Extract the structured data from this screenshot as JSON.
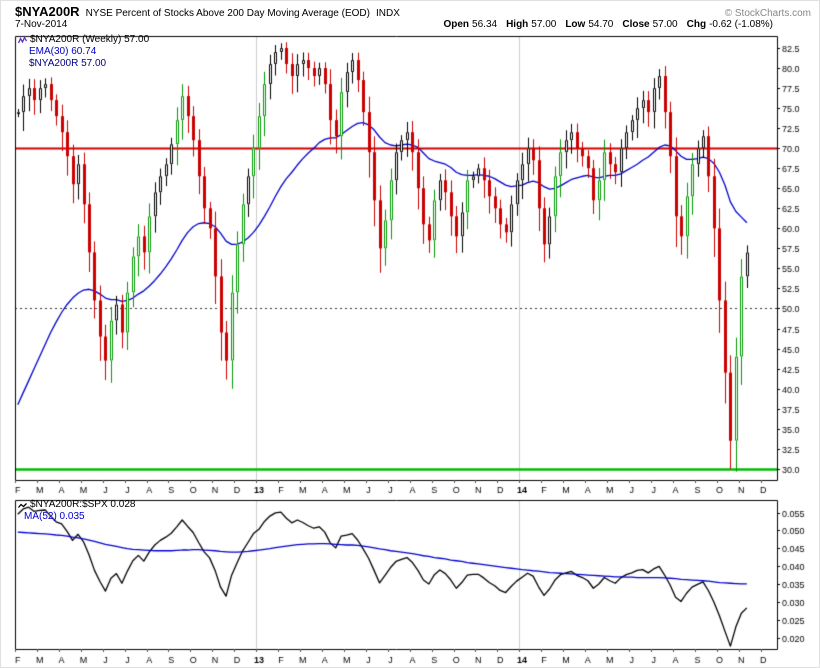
{
  "header": {
    "symbol": "$NYA200R",
    "title": "NYSE Percent of Stocks Above 200 Day Moving Average (EOD)",
    "exchange": "INDX",
    "copyright": "© StockCharts.com",
    "date": "7-Nov-2014",
    "quote": {
      "open_label": "Open",
      "open": "56.34",
      "high_label": "High",
      "high": "57.00",
      "low_label": "Low",
      "low": "54.70",
      "close_label": "Close",
      "close": "57.00",
      "chg_label": "Chg",
      "chg": "-0.62 (-1.08%)"
    }
  },
  "main_legend": {
    "series": "$NYA200R (Weekly) 57.00",
    "ema": "EMA(30) 60.74",
    "price": "$NYA200R 57.00"
  },
  "lower_legend": {
    "ratio": "$NYA200R:$SPX 0.028",
    "ma": "MA(52) 0.035"
  },
  "colors": {
    "candle_up": "#000000",
    "candle_up_strong": "#009900",
    "candle_down": "#cc0000",
    "ema_line": "#0000cc",
    "ratio_line": "#000000",
    "ma_line": "#0000cc",
    "overbought_line": "#cc0000",
    "oversold_line": "#00bb00",
    "mid_dashed_line": "#333333",
    "year_gridline": "#cccccc",
    "axis_text": "#000000"
  },
  "chart_data": {
    "type": [
      "candlestick",
      "line"
    ],
    "frequency": "Weekly",
    "x_range": "Feb-2012 to Nov-2014",
    "months": [
      {
        "label": "F",
        "weeks": 4
      },
      {
        "label": "M",
        "weeks": 4
      },
      {
        "label": "A",
        "weeks": 4
      },
      {
        "label": "M",
        "weeks": 4
      },
      {
        "label": "J",
        "weeks": 4
      },
      {
        "label": "J",
        "weeks": 4
      },
      {
        "label": "A",
        "weeks": 4
      },
      {
        "label": "S",
        "weeks": 4
      },
      {
        "label": "O",
        "weeks": 4
      },
      {
        "label": "N",
        "weeks": 4
      },
      {
        "label": "D",
        "weeks": 4
      },
      {
        "label": "13",
        "weeks": 4,
        "bold": true
      },
      {
        "label": "F",
        "weeks": 4
      },
      {
        "label": "M",
        "weeks": 4
      },
      {
        "label": "A",
        "weeks": 4
      },
      {
        "label": "M",
        "weeks": 4
      },
      {
        "label": "J",
        "weeks": 4
      },
      {
        "label": "J",
        "weeks": 4
      },
      {
        "label": "A",
        "weeks": 4
      },
      {
        "label": "S",
        "weeks": 4
      },
      {
        "label": "O",
        "weeks": 4
      },
      {
        "label": "N",
        "weeks": 4
      },
      {
        "label": "D",
        "weeks": 4
      },
      {
        "label": "14",
        "weeks": 4,
        "bold": true
      },
      {
        "label": "F",
        "weeks": 4
      },
      {
        "label": "M",
        "weeks": 4
      },
      {
        "label": "A",
        "weeks": 4
      },
      {
        "label": "M",
        "weeks": 4
      },
      {
        "label": "J",
        "weeks": 4
      },
      {
        "label": "J",
        "weeks": 4
      },
      {
        "label": "A",
        "weeks": 4
      },
      {
        "label": "S",
        "weeks": 4
      },
      {
        "label": "O",
        "weeks": 4
      },
      {
        "label": "N",
        "weeks": 4
      },
      {
        "label": "D",
        "weeks": 3
      }
    ],
    "panels": [
      {
        "name": "$NYA200R (Weekly)",
        "type": "candlestick",
        "ylim": [
          28.6,
          84.0
        ],
        "decimals": 1,
        "yticks": [
          82.5,
          80.0,
          77.5,
          75.0,
          72.5,
          70.0,
          67.5,
          65.0,
          62.5,
          60.0,
          57.5,
          55.0,
          52.5,
          50.0,
          47.5,
          45.0,
          42.5,
          40.0,
          37.5,
          35.0,
          32.5,
          30.0
        ],
        "hlines": [
          {
            "y": 70.0,
            "color": "#cc0000",
            "width": 2
          },
          {
            "y": 50.0,
            "color": "#333333",
            "width": 1,
            "style": "dashed"
          },
          {
            "y": 30.0,
            "color": "#00bb00",
            "width": 2.5
          }
        ],
        "closes": [
          74.5,
          76.5,
          77.5,
          76.0,
          77.5,
          78.0,
          76.0,
          74.0,
          72.0,
          69.0,
          65.5,
          68.0,
          63.0,
          57.0,
          51.0,
          46.5,
          43.5,
          48.5,
          50.5,
          47.0,
          52.0,
          56.5,
          59.0,
          57.0,
          61.5,
          64.5,
          66.5,
          68.0,
          70.5,
          73.5,
          76.5,
          74.0,
          71.0,
          66.5,
          62.5,
          60.0,
          54.0,
          47.0,
          43.5,
          52.0,
          58.0,
          63.0,
          66.5,
          70.0,
          74.0,
          78.0,
          80.5,
          82.0,
          82.5,
          80.5,
          79.0,
          80.5,
          81.0,
          80.0,
          79.0,
          80.0,
          78.0,
          73.5,
          71.5,
          77.0,
          79.5,
          81.0,
          78.5,
          74.5,
          69.5,
          63.5,
          57.5,
          61.0,
          66.0,
          69.5,
          71.0,
          72.0,
          69.5,
          65.0,
          60.5,
          58.5,
          63.5,
          66.0,
          64.5,
          61.5,
          59.0,
          62.0,
          66.0,
          66.5,
          67.5,
          66.0,
          64.0,
          62.5,
          60.5,
          59.5,
          63.0,
          66.0,
          68.0,
          70.0,
          68.5,
          62.5,
          58.0,
          61.5,
          66.5,
          69.5,
          71.0,
          72.0,
          70.0,
          69.0,
          67.5,
          63.5,
          66.0,
          69.5,
          68.0,
          67.0,
          70.0,
          72.0,
          73.5,
          75.0,
          76.0,
          74.5,
          77.5,
          79.0,
          74.5,
          69.0,
          61.5,
          59.0,
          64.0,
          68.0,
          70.0,
          71.5,
          66.5,
          60.0,
          51.0,
          42.0,
          33.5,
          44.0,
          54.0,
          57.0
        ],
        "lines": [
          {
            "name": "EMA(30)",
            "color": "#0000cc",
            "width": 1.3,
            "values": [
              38.0,
              39.5,
              41.0,
              42.5,
              44.0,
              45.5,
              47.0,
              48.3,
              49.5,
              50.5,
              51.3,
              51.9,
              52.3,
              52.4,
              52.2,
              51.8,
              51.3,
              51.1,
              51.1,
              50.9,
              51.0,
              51.3,
              51.8,
              52.2,
              52.8,
              53.5,
              54.3,
              55.2,
              56.2,
              57.3,
              58.5,
              59.5,
              60.2,
              60.6,
              60.7,
              60.6,
              60.2,
              59.4,
              58.4,
              58.0,
              58.0,
              58.3,
              58.8,
              59.5,
              60.4,
              61.5,
              62.7,
              64.0,
              65.2,
              66.2,
              67.0,
              67.9,
              68.7,
              69.4,
              70.0,
              70.7,
              71.1,
              71.3,
              71.3,
              71.7,
              72.2,
              72.7,
              73.1,
              73.2,
              72.9,
              72.3,
              71.4,
              70.7,
              70.4,
              70.3,
              70.4,
              70.5,
              70.4,
              70.1,
              69.4,
              68.7,
              68.4,
              68.2,
              68.0,
              67.6,
              67.0,
              66.7,
              66.6,
              66.6,
              66.7,
              66.6,
              66.5,
              66.2,
              65.8,
              65.4,
              65.2,
              65.3,
              65.4,
              65.7,
              65.9,
              65.7,
              65.2,
              64.9,
              65.0,
              65.3,
              65.7,
              66.1,
              66.3,
              66.5,
              66.6,
              66.4,
              66.3,
              66.5,
              66.6,
              66.6,
              66.8,
              67.2,
              67.6,
              68.0,
              68.5,
              68.9,
              69.5,
              70.1,
              70.4,
              70.3,
              69.7,
              69.0,
              68.6,
              68.6,
              68.7,
              68.9,
              68.7,
              68.1,
              67.0,
              65.4,
              63.3,
              62.1,
              61.4,
              60.7
            ]
          }
        ]
      },
      {
        "name": "$NYA200R:$SPX",
        "type": "line",
        "ylim": [
          0.0168,
          0.0585
        ],
        "decimals": 3,
        "yticks": [
          0.055,
          0.05,
          0.045,
          0.04,
          0.035,
          0.03,
          0.025,
          0.02
        ],
        "hlines": [],
        "lines": [
          {
            "name": "$NYA200R:$SPX",
            "color": "#000000",
            "width": 1.3,
            "values": [
              0.0545,
              0.056,
              0.0565,
              0.0553,
              0.0556,
              0.0557,
              0.054,
              0.0524,
              0.0518,
              0.0497,
              0.0472,
              0.0489,
              0.0468,
              0.0432,
              0.0388,
              0.0357,
              0.033,
              0.0366,
              0.0379,
              0.0352,
              0.0386,
              0.0415,
              0.043,
              0.0414,
              0.044,
              0.0459,
              0.0472,
              0.0481,
              0.0492,
              0.051,
              0.0529,
              0.0511,
              0.0494,
              0.0466,
              0.044,
              0.0423,
              0.0388,
              0.0341,
              0.0316,
              0.0374,
              0.0409,
              0.0442,
              0.0466,
              0.0491,
              0.0503,
              0.0525,
              0.054,
              0.0549,
              0.0551,
              0.0534,
              0.0521,
              0.0529,
              0.0522,
              0.0513,
              0.0506,
              0.051,
              0.0495,
              0.0465,
              0.0451,
              0.0484,
              0.0487,
              0.0491,
              0.0473,
              0.0448,
              0.0422,
              0.0388,
              0.0353,
              0.0374,
              0.0396,
              0.0413,
              0.0419,
              0.0424,
              0.041,
              0.0388,
              0.0361,
              0.035,
              0.0376,
              0.0389,
              0.0379,
              0.0361,
              0.0338,
              0.0354,
              0.0375,
              0.0377,
              0.0377,
              0.0367,
              0.0354,
              0.0345,
              0.0332,
              0.0326,
              0.0343,
              0.0358,
              0.0369,
              0.038,
              0.0372,
              0.0342,
              0.0318,
              0.0336,
              0.0361,
              0.0376,
              0.0381,
              0.0385,
              0.0374,
              0.0368,
              0.0359,
              0.0338,
              0.035,
              0.0368,
              0.0359,
              0.0352,
              0.0367,
              0.0376,
              0.0381,
              0.0388,
              0.039,
              0.0381,
              0.0392,
              0.0399,
              0.0375,
              0.0347,
              0.0313,
              0.0301,
              0.0324,
              0.0341,
              0.0349,
              0.0356,
              0.0331,
              0.0299,
              0.0261,
              0.0218,
              0.0176,
              0.023,
              0.0268,
              0.0283
            ]
          },
          {
            "name": "MA(52)",
            "color": "#0000cc",
            "width": 1.3,
            "values": [
              0.0495,
              0.0494,
              0.0493,
              0.0492,
              0.0491,
              0.049,
              0.0489,
              0.0487,
              0.0486,
              0.0484,
              0.0481,
              0.0479,
              0.0476,
              0.0473,
              0.0469,
              0.0465,
              0.0461,
              0.0458,
              0.0455,
              0.0452,
              0.0449,
              0.0447,
              0.0446,
              0.0445,
              0.0444,
              0.0443,
              0.0443,
              0.0443,
              0.0443,
              0.0444,
              0.0445,
              0.0445,
              0.0446,
              0.0446,
              0.0445,
              0.0444,
              0.0443,
              0.0441,
              0.044,
              0.0439,
              0.0439,
              0.044,
              0.0441,
              0.0443,
              0.0445,
              0.0447,
              0.0449,
              0.0452,
              0.0454,
              0.0456,
              0.0458,
              0.046,
              0.0461,
              0.0462,
              0.0462,
              0.0463,
              0.0463,
              0.0462,
              0.0461,
              0.046,
              0.0459,
              0.0459,
              0.0458,
              0.0456,
              0.0454,
              0.0451,
              0.0448,
              0.0446,
              0.0443,
              0.0441,
              0.0439,
              0.0437,
              0.0435,
              0.0432,
              0.0429,
              0.0427,
              0.0424,
              0.0422,
              0.042,
              0.0417,
              0.0415,
              0.0413,
              0.041,
              0.0408,
              0.0406,
              0.0404,
              0.0402,
              0.04,
              0.0398,
              0.0396,
              0.0394,
              0.0392,
              0.039,
              0.0389,
              0.0387,
              0.0386,
              0.0384,
              0.0382,
              0.0381,
              0.038,
              0.0379,
              0.0378,
              0.0377,
              0.0376,
              0.0375,
              0.0374,
              0.0373,
              0.0372,
              0.0371,
              0.037,
              0.037,
              0.0369,
              0.0369,
              0.0368,
              0.0368,
              0.0368,
              0.0368,
              0.0368,
              0.0367,
              0.0366,
              0.0365,
              0.0363,
              0.0362,
              0.0361,
              0.036,
              0.0359,
              0.0358,
              0.0356,
              0.0354,
              0.0353,
              0.0352,
              0.0351,
              0.035,
              0.035
            ]
          }
        ]
      }
    ]
  }
}
